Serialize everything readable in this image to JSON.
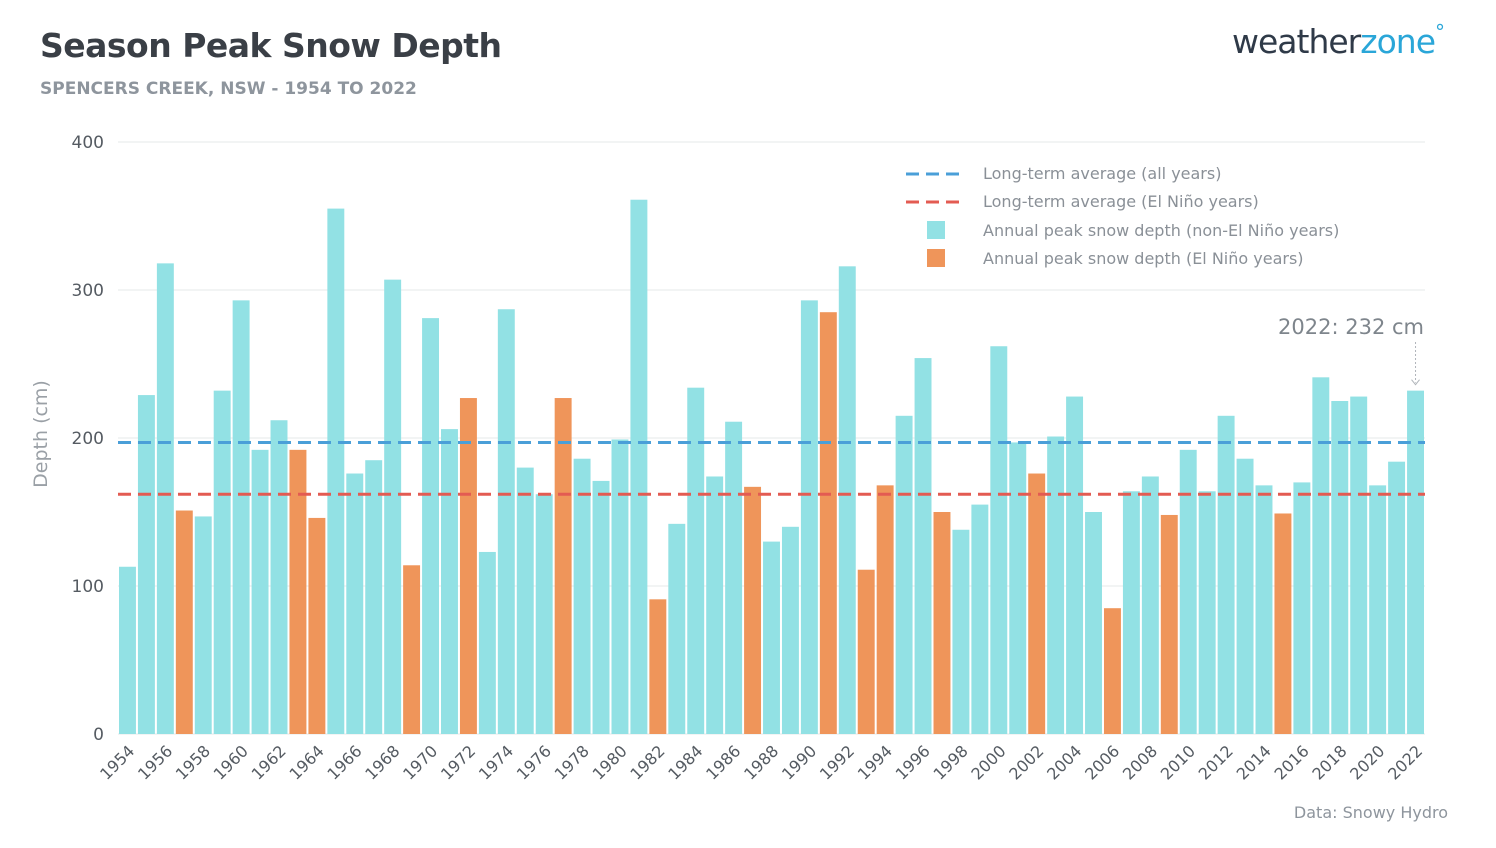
{
  "title": "Season Peak Snow Depth",
  "subtitle": "SPENCERS CREEK, NSW - 1954 TO 2022",
  "logo": {
    "part1": "weather",
    "part2": "zone",
    "mark": "°"
  },
  "source": "Data: Snowy Hydro",
  "colors": {
    "non_el_nino": "#92e1e4",
    "el_nino": "#ef955a",
    "avg_all": "#4a9fd8",
    "avg_el_nino": "#e35b52",
    "grid": "#e6e8ea"
  },
  "chart_data": {
    "type": "bar",
    "ylabel": "Depth (cm)",
    "ylim": [
      0,
      400
    ],
    "yticks": [
      0,
      100,
      200,
      300,
      400
    ],
    "xticks": [
      "1954",
      "1956",
      "1958",
      "1960",
      "1962",
      "1964",
      "1966",
      "1968",
      "1970",
      "1972",
      "1974",
      "1976",
      "1978",
      "1980",
      "1982",
      "1984",
      "1986",
      "1988",
      "1990",
      "1992",
      "1994",
      "1996",
      "1998",
      "2000",
      "2002",
      "2004",
      "2006",
      "2008",
      "2010",
      "2012",
      "2014",
      "2016",
      "2018",
      "2020",
      "2022"
    ],
    "categories": [
      "1954",
      "1955",
      "1956",
      "1957",
      "1958",
      "1959",
      "1960",
      "1961",
      "1962",
      "1963",
      "1964",
      "1965",
      "1966",
      "1967",
      "1968",
      "1969",
      "1970",
      "1971",
      "1972",
      "1973",
      "1974",
      "1975",
      "1976",
      "1977",
      "1978",
      "1979",
      "1980",
      "1981",
      "1982",
      "1983",
      "1984",
      "1985",
      "1986",
      "1987",
      "1988",
      "1989",
      "1990",
      "1991",
      "1992",
      "1993",
      "1994",
      "1995",
      "1996",
      "1997",
      "1998",
      "1999",
      "2000",
      "2001",
      "2002",
      "2003",
      "2004",
      "2005",
      "2006",
      "2007",
      "2008",
      "2009",
      "2010",
      "2011",
      "2012",
      "2013",
      "2014",
      "2015",
      "2016",
      "2017",
      "2018",
      "2019",
      "2020",
      "2021",
      "2022"
    ],
    "values": [
      113,
      229,
      318,
      151,
      147,
      232,
      293,
      192,
      212,
      192,
      146,
      355,
      176,
      185,
      307,
      114,
      281,
      206,
      227,
      123,
      287,
      180,
      162,
      227,
      186,
      171,
      199,
      361,
      91,
      142,
      234,
      174,
      211,
      167,
      130,
      140,
      293,
      285,
      316,
      111,
      168,
      215,
      254,
      150,
      138,
      155,
      262,
      197,
      176,
      201,
      228,
      150,
      85,
      164,
      174,
      148,
      192,
      164,
      215,
      186,
      168,
      149,
      170,
      241,
      225,
      228,
      168,
      184,
      232
    ],
    "el_nino": [
      false,
      false,
      false,
      true,
      false,
      false,
      false,
      false,
      false,
      true,
      true,
      false,
      false,
      false,
      false,
      true,
      false,
      false,
      true,
      false,
      false,
      false,
      false,
      true,
      false,
      false,
      false,
      false,
      true,
      false,
      false,
      false,
      false,
      true,
      false,
      false,
      false,
      true,
      false,
      true,
      true,
      false,
      false,
      true,
      false,
      false,
      false,
      false,
      true,
      false,
      false,
      false,
      true,
      false,
      false,
      true,
      false,
      false,
      false,
      false,
      false,
      true,
      false,
      false,
      false,
      false,
      false,
      false,
      false
    ],
    "reference_lines": [
      {
        "name": "Long-term average (all years)",
        "value": 197
      },
      {
        "name": "Long-term average (El Niño years)",
        "value": 162
      }
    ],
    "series": [
      {
        "name": "Annual peak snow depth (non-El Niño years)"
      },
      {
        "name": "Annual peak snow depth (El Niño years)"
      }
    ],
    "legend_position": "top-right",
    "annotation": {
      "label": "2022: 232 cm",
      "year": "2022"
    },
    "grid": true
  }
}
